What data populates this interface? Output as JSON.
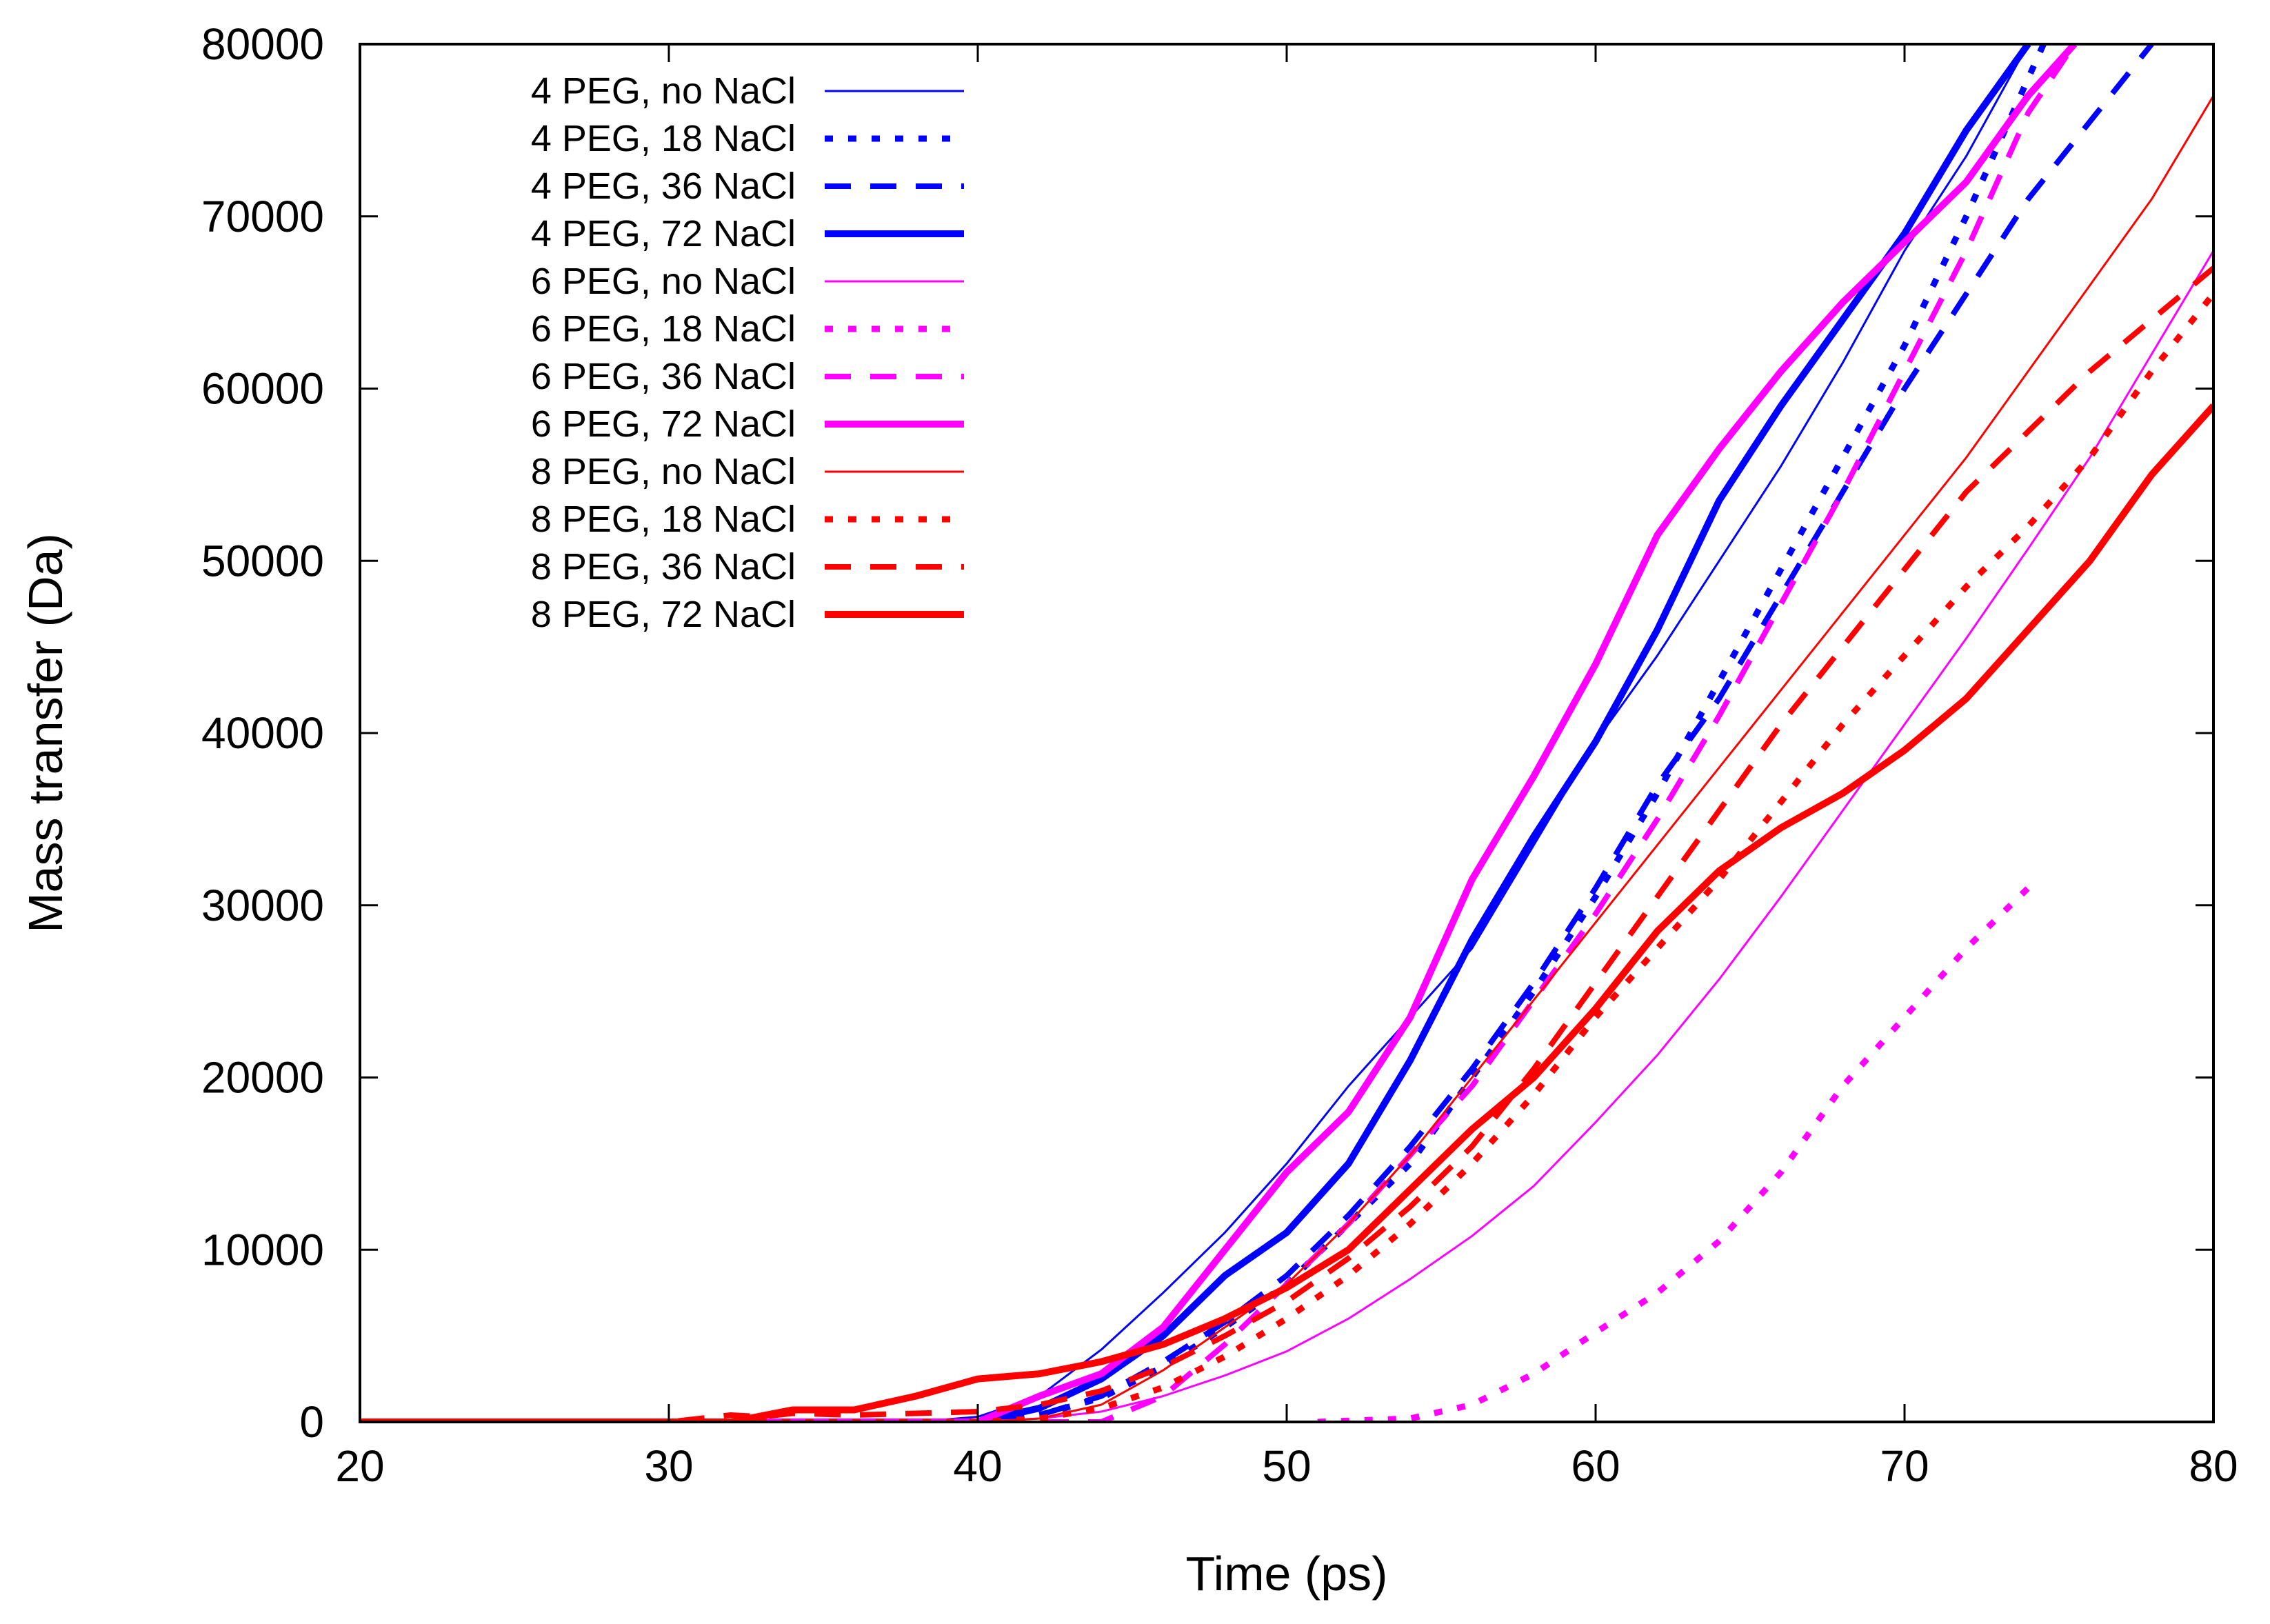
{
  "chart_data": {
    "type": "line",
    "title": "",
    "xlabel": "Time (ps)",
    "ylabel": "Mass transfer (Da)",
    "xlim": [
      20,
      80
    ],
    "ylim": [
      0,
      80000
    ],
    "xticks": [
      20,
      30,
      40,
      50,
      60,
      70,
      80
    ],
    "yticks": [
      0,
      10000,
      20000,
      30000,
      40000,
      50000,
      60000,
      70000,
      80000
    ],
    "grid": false,
    "legend_position": "top-left",
    "series": [
      {
        "name": "4 PEG, no NaCl",
        "color": "#0000ff",
        "style": "thin",
        "x": [
          20,
          38,
          40,
          42,
          44,
          46,
          48,
          50,
          52,
          54,
          56,
          58,
          60,
          62,
          64,
          66,
          68,
          70,
          72,
          74
        ],
        "y": [
          0,
          0,
          300,
          1500,
          4200,
          7500,
          11000,
          15000,
          19500,
          23500,
          27500,
          33500,
          39500,
          44500,
          50000,
          55500,
          61500,
          68000,
          73500,
          80000
        ]
      },
      {
        "name": "4 PEG, 18 NaCl",
        "color": "#0000ff",
        "style": "dotted",
        "x": [
          20,
          40,
          42,
          44,
          46,
          48,
          50,
          52,
          54,
          56,
          58,
          60,
          62,
          64,
          66,
          68,
          70,
          72,
          74.5
        ],
        "y": [
          0,
          0,
          400,
          1400,
          3200,
          5500,
          8000,
          11500,
          15000,
          20000,
          25000,
          30500,
          36500,
          43000,
          49500,
          56000,
          62500,
          70000,
          80000
        ]
      },
      {
        "name": "4 PEG, 36 NaCl",
        "color": "#0000ff",
        "style": "dashed",
        "x": [
          20,
          40,
          42,
          44,
          46,
          48,
          50,
          52,
          54,
          56,
          58,
          60,
          62,
          64,
          66,
          68,
          70,
          72,
          74,
          76,
          78
        ],
        "y": [
          0,
          0,
          400,
          1500,
          3500,
          5800,
          8500,
          12000,
          16000,
          20500,
          25500,
          31000,
          37000,
          42000,
          48000,
          54000,
          60000,
          65500,
          71000,
          75500,
          80000
        ]
      },
      {
        "name": "4 PEG, 72 NaCl",
        "color": "#0000ff",
        "style": "thick",
        "x": [
          20,
          40,
          42,
          44,
          46,
          48,
          50,
          52,
          54,
          56,
          58,
          60,
          62,
          64,
          66,
          68,
          70,
          72,
          74
        ],
        "y": [
          0,
          0,
          800,
          2500,
          5000,
          8500,
          11000,
          15000,
          21000,
          28000,
          34000,
          39500,
          46000,
          53500,
          59000,
          64000,
          69000,
          75000,
          80000
        ]
      },
      {
        "name": "6 PEG, no NaCl",
        "color": "#ff00ff",
        "style": "thin",
        "x": [
          20,
          40,
          42,
          44,
          46,
          48,
          50,
          52,
          54,
          56,
          58,
          60,
          62,
          64,
          66,
          68,
          70,
          72,
          74,
          76,
          78,
          80
        ],
        "y": [
          0,
          0,
          200,
          600,
          1500,
          2700,
          4100,
          6000,
          8300,
          10800,
          13700,
          17400,
          21300,
          25700,
          30500,
          35500,
          40500,
          45500,
          50700,
          56000,
          62000,
          68000
        ]
      },
      {
        "name": "6 PEG, 18 NaCl",
        "color": "#ff00ff",
        "style": "dotted",
        "x": [
          51,
          54,
          56,
          58,
          60,
          62,
          64,
          66,
          68,
          70,
          72,
          74
        ],
        "y": [
          0,
          200,
          1000,
          2800,
          5200,
          7500,
          10500,
          14500,
          19500,
          23500,
          27500,
          31000
        ]
      },
      {
        "name": "6 PEG, 36 NaCl",
        "color": "#ff00ff",
        "style": "dashed",
        "x": [
          20,
          44,
          46,
          48,
          50,
          52,
          54,
          56,
          58,
          60,
          62,
          64,
          66,
          68,
          70,
          72,
          74,
          75.5
        ],
        "y": [
          0,
          0,
          1500,
          4500,
          8000,
          11500,
          15500,
          19500,
          24500,
          29500,
          35000,
          41000,
          47500,
          54000,
          61000,
          68000,
          76000,
          80000
        ]
      },
      {
        "name": "6 PEG, 72 NaCl",
        "color": "#ff00ff",
        "style": "thick",
        "x": [
          20,
          40,
          42,
          44,
          46,
          48,
          50,
          52,
          54,
          56,
          58,
          60,
          62,
          64,
          66,
          68,
          70,
          72,
          74,
          75.5
        ],
        "y": [
          0,
          0,
          1500,
          2800,
          5500,
          10000,
          14500,
          18000,
          23500,
          31500,
          37500,
          44000,
          51500,
          56500,
          61000,
          65000,
          68500,
          72000,
          77000,
          80000
        ]
      },
      {
        "name": "8 PEG, no NaCl",
        "color": "#ff0000",
        "style": "thin",
        "x": [
          20,
          40,
          42,
          44,
          46,
          48,
          50,
          52,
          54,
          56,
          58,
          60,
          62,
          64,
          66,
          68,
          70,
          72,
          74,
          76,
          78,
          80
        ],
        "y": [
          0,
          0,
          200,
          1000,
          3000,
          5500,
          8000,
          11500,
          15500,
          20000,
          24500,
          29000,
          33500,
          38000,
          42500,
          47000,
          51500,
          56000,
          61000,
          66000,
          71000,
          77000
        ]
      },
      {
        "name": "8 PEG, 18 NaCl",
        "color": "#ff0000",
        "style": "dotted",
        "x": [
          20,
          40,
          42,
          44,
          46,
          48,
          50,
          52,
          54,
          56,
          58,
          60,
          62,
          64,
          66,
          68,
          70,
          72,
          74,
          76,
          78,
          80
        ],
        "y": [
          0,
          0,
          200,
          800,
          2000,
          3800,
          6000,
          8500,
          11500,
          15000,
          19000,
          23500,
          27500,
          31500,
          36000,
          40500,
          44500,
          48500,
          52000,
          56000,
          61000,
          65500
        ]
      },
      {
        "name": "8 PEG, 36 NaCl",
        "color": "#ff0000",
        "style": "dashed",
        "x": [
          20,
          30,
          32,
          33,
          34,
          36,
          38,
          40,
          42,
          44,
          46,
          48,
          50,
          52,
          54,
          56,
          58,
          60,
          62,
          64,
          66,
          68,
          70,
          72,
          74,
          76,
          78,
          80
        ],
        "y": [
          0,
          0,
          400,
          300,
          500,
          400,
          500,
          600,
          1000,
          1800,
          3200,
          5000,
          7000,
          9500,
          12500,
          16000,
          20500,
          25500,
          30500,
          35500,
          40500,
          45000,
          49500,
          54000,
          57500,
          61000,
          64000,
          67000
        ]
      },
      {
        "name": "8 PEG, 72 NaCl",
        "color": "#ff0000",
        "style": "thick",
        "x": [
          20,
          32,
          34,
          36,
          38,
          40,
          42,
          44,
          46,
          48,
          50,
          52,
          54,
          56,
          58,
          60,
          62,
          64,
          66,
          68,
          70,
          72,
          74,
          76,
          78,
          80
        ],
        "y": [
          0,
          0,
          700,
          700,
          1500,
          2500,
          2800,
          3500,
          4500,
          6000,
          7800,
          10000,
          13500,
          17000,
          20000,
          24000,
          28500,
          32000,
          34500,
          36500,
          39000,
          42000,
          46000,
          50000,
          55000,
          59000
        ]
      }
    ]
  }
}
